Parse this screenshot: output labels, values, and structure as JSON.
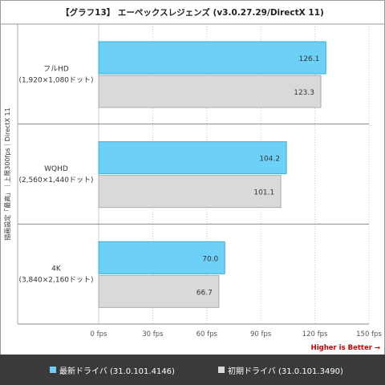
{
  "chart_data": {
    "type": "bar",
    "orientation": "horizontal",
    "title": "【グラフ13】 エーペックスレジェンズ (v3.0.27.29/DirectX 11)",
    "ylabel": "描画設定「最高」｜上限300fps｜DirectX 11",
    "categories": [
      {
        "name": "フルHD",
        "sub": "(1,920×1,080ドット)"
      },
      {
        "name": "WQHD",
        "sub": "(2,560×1,440ドット)"
      },
      {
        "name": "4K",
        "sub": "(3,840×2,160ドット)"
      }
    ],
    "series": [
      {
        "name": "最新ドライバ (31.0.101.4146)",
        "color": "#6dd0f7",
        "values": [
          126.1,
          104.2,
          70.0
        ]
      },
      {
        "name": "初期ドライバ (31.0.101.3490)",
        "color": "#d9d9d9",
        "values": [
          123.3,
          101.1,
          66.7
        ]
      }
    ],
    "value_labels": [
      [
        "126.1",
        "104.2",
        "70.0"
      ],
      [
        "123.3",
        "101.1",
        "66.7"
      ]
    ],
    "xlim": [
      0,
      150
    ],
    "xticks": [
      0,
      30,
      60,
      90,
      120,
      150
    ],
    "xtick_labels": [
      "0 fps",
      "30 fps",
      "60 fps",
      "90 fps",
      "120 fps",
      "150 fps"
    ],
    "annotation": "Higher is Better →",
    "annotation_color": "#cc0000",
    "legend": "bottom",
    "grid": true
  }
}
